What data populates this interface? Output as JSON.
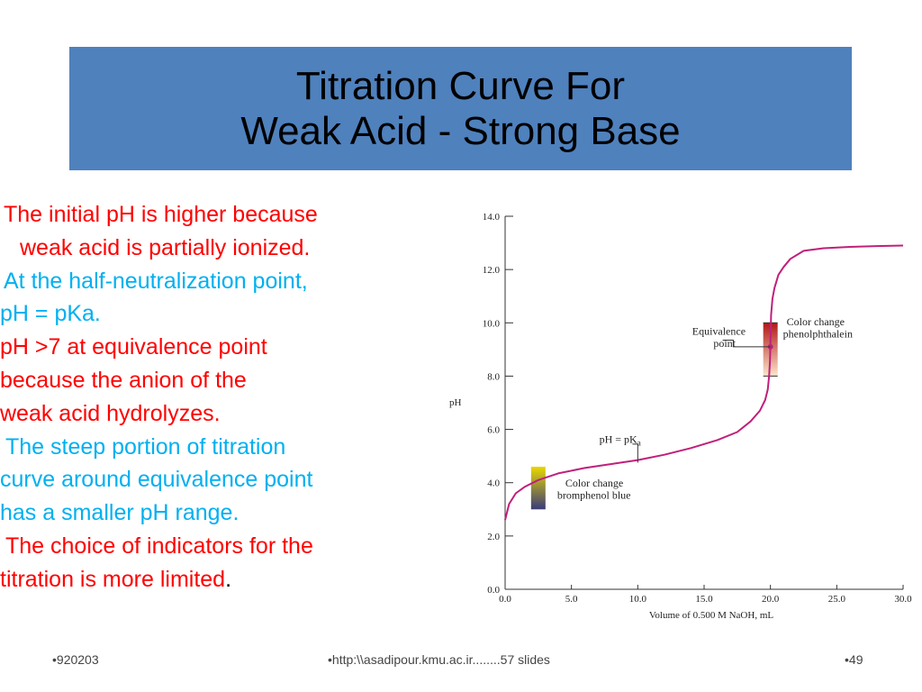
{
  "title": {
    "line1": "Titration Curve For",
    "line2": "Weak Acid - Strong Base"
  },
  "bullets": [
    {
      "color": "#ff0000",
      "lines": [
        {
          "text": "The initial pH is higher because",
          "indent": 4
        },
        {
          "text": "weak acid is partially ionized.",
          "indent": 22
        }
      ]
    },
    {
      "color": "#00b0f0",
      "lines": [
        {
          "text": "At the half-neutralization point,",
          "indent": 4
        },
        {
          "text": "pH = pKa.",
          "indent": 0
        }
      ]
    },
    {
      "color": "#ff0000",
      "lines": [
        {
          "text": "pH >7 at equivalence point",
          "indent": 0
        },
        {
          "text": "because the anion of the",
          "indent": 0
        },
        {
          "text": "weak acid hydrolyzes.",
          "indent": 0
        }
      ]
    },
    {
      "color": "#00b0f0",
      "lines": [
        {
          "text": "The steep portion of titration",
          "indent": 6
        },
        {
          "text": "curve around equivalence point",
          "indent": 0
        },
        {
          "text": "has a  smaller pH range.",
          "indent": 0
        }
      ]
    },
    {
      "color": "#ff0000",
      "lines": [
        {
          "text": "The choice of indicators for the",
          "indent": 6
        },
        {
          "text": "titration is more limited",
          "indent": 0,
          "suffix": "."
        }
      ]
    }
  ],
  "chart_data": {
    "type": "line",
    "xlabel": "Volume of 0.500 M NaOH, mL",
    "ylabel": "pH",
    "xlim": [
      0,
      30
    ],
    "ylim": [
      0,
      14
    ],
    "x_ticks": [
      "0.0",
      "5.0",
      "10.0",
      "15.0",
      "20.0",
      "25.0",
      "30.0"
    ],
    "y_ticks": [
      "0.0",
      "2.0",
      "4.0",
      "6.0",
      "8.0",
      "10.0",
      "12.0",
      "14.0"
    ],
    "grid": false,
    "series": [
      {
        "color": "#c0207a",
        "x": [
          0,
          0.3,
          0.8,
          1.5,
          2.5,
          4,
          6,
          8,
          10,
          12,
          14,
          16,
          17.5,
          18.5,
          19.2,
          19.6,
          19.8,
          19.9,
          19.97,
          20,
          20.05,
          20.15,
          20.3,
          20.6,
          21,
          21.5,
          22.5,
          24,
          26,
          28,
          30
        ],
        "y": [
          2.6,
          3.2,
          3.6,
          3.85,
          4.1,
          4.35,
          4.55,
          4.7,
          4.85,
          5.05,
          5.3,
          5.6,
          5.9,
          6.3,
          6.7,
          7.1,
          7.5,
          8.0,
          8.6,
          9.3,
          10.3,
          10.9,
          11.3,
          11.8,
          12.1,
          12.4,
          12.7,
          12.8,
          12.85,
          12.88,
          12.9
        ]
      }
    ],
    "indicators": [
      {
        "name_lines": [
          "Color change",
          "bromphenol blue"
        ],
        "x": 2.5,
        "y_range": [
          3.0,
          4.6
        ],
        "colors": [
          "#3a3a7a",
          "#e8d800"
        ]
      },
      {
        "name_lines": [
          "Color change",
          "phenolphthalein"
        ],
        "x": 20,
        "y_range": [
          8.0,
          10.0
        ],
        "colors": [
          "#fde6cc",
          "#b01818"
        ]
      }
    ],
    "annotations": [
      {
        "lines": [
          "Equivalence",
          "point"
        ],
        "x": 20,
        "y": 9.1
      },
      {
        "text": "pH = pK",
        "subscript": "a",
        "x": 10,
        "y": 4.75
      }
    ]
  },
  "footer": {
    "left": "•920203",
    "center": "•http:\\\\asadipour.kmu.ac.ir........57 slides",
    "right": "•49"
  }
}
